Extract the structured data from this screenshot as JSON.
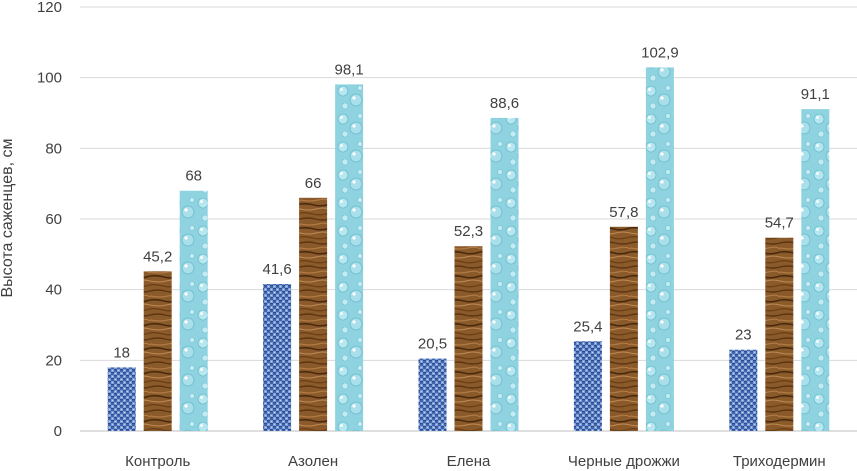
{
  "chart_data": {
    "type": "bar",
    "title": "",
    "xlabel": "",
    "ylabel": "Высота саженцев, см",
    "ylim": [
      0,
      120
    ],
    "yticks": [
      0,
      20,
      40,
      60,
      80,
      100,
      120
    ],
    "grid": true,
    "categories": [
      "Контроль",
      "Азолен",
      "Елена",
      "Черные дрожжи",
      "Триходермин"
    ],
    "series": [
      {
        "name": "series-1",
        "pattern": "blue-woven",
        "color": "#4a6fb8",
        "values": [
          18,
          41.6,
          20.5,
          25.4,
          23
        ],
        "labels": [
          "18",
          "41,6",
          "20,5",
          "25,4",
          "23"
        ]
      },
      {
        "name": "series-2",
        "pattern": "wood-grain",
        "color": "#8b5a2b",
        "values": [
          45.2,
          66,
          52.3,
          57.8,
          54.7
        ],
        "labels": [
          "45,2",
          "66",
          "52,3",
          "57,8",
          "54,7"
        ]
      },
      {
        "name": "series-3",
        "pattern": "water-droplets",
        "color": "#8fd3e0",
        "values": [
          68,
          98.1,
          88.6,
          102.9,
          91.1
        ],
        "labels": [
          "68",
          "98,1",
          "88,6",
          "102,9",
          "91,1"
        ]
      }
    ]
  }
}
